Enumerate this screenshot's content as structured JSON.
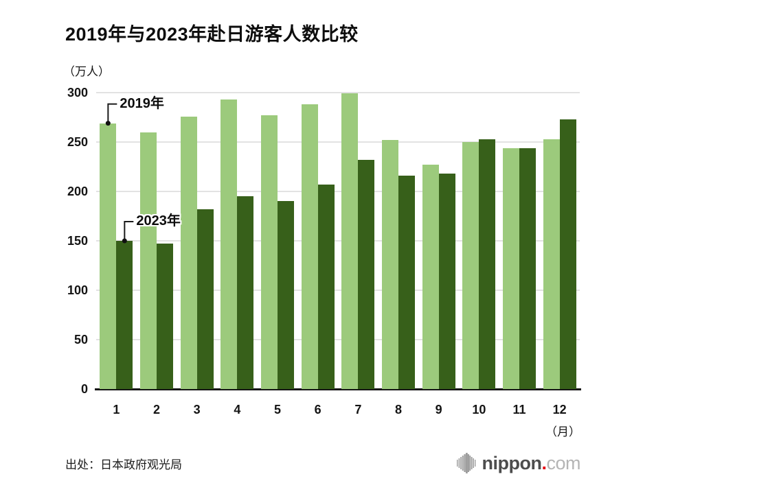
{
  "title": "2019年与2023年赴日游客人数比较",
  "y_axis": {
    "unit": "（万人）",
    "ticks": [
      0,
      50,
      100,
      150,
      200,
      250,
      300
    ]
  },
  "x_axis": {
    "unit": "（月）"
  },
  "annotations": [
    {
      "label": "2019年",
      "series": 0,
      "month": 0
    },
    {
      "label": "2023年",
      "series": 1,
      "month": 0
    }
  ],
  "source": "出处：日本政府观光局",
  "logo": {
    "brand_bold": "nippon",
    "dot": ".",
    "brand_light": "com",
    "dot_color": "#e60012",
    "mark_color": "#9e9e9e"
  },
  "chart_data": {
    "type": "bar",
    "title": "2019年与2023年赴日游客人数比较",
    "categories": [
      "1",
      "2",
      "3",
      "4",
      "5",
      "6",
      "7",
      "8",
      "9",
      "10",
      "11",
      "12"
    ],
    "series": [
      {
        "name": "2019年",
        "color": "#9cca7c",
        "values": [
          269,
          260,
          276,
          293,
          277,
          288,
          299,
          252,
          227,
          250,
          244,
          253
        ]
      },
      {
        "name": "2023年",
        "color": "#37601a",
        "values": [
          150,
          147,
          182,
          195,
          190,
          207,
          232,
          216,
          218,
          253,
          244,
          273
        ]
      }
    ],
    "xlabel": "月",
    "ylabel": "万人",
    "ylim": [
      0,
      300
    ],
    "yticks": [
      0,
      50,
      100,
      150,
      200,
      250,
      300
    ],
    "grid": true,
    "grid_color": "#e2e2e2",
    "axis_color": "#141414",
    "legend_position": "callout-annotations-on-january-bars"
  }
}
